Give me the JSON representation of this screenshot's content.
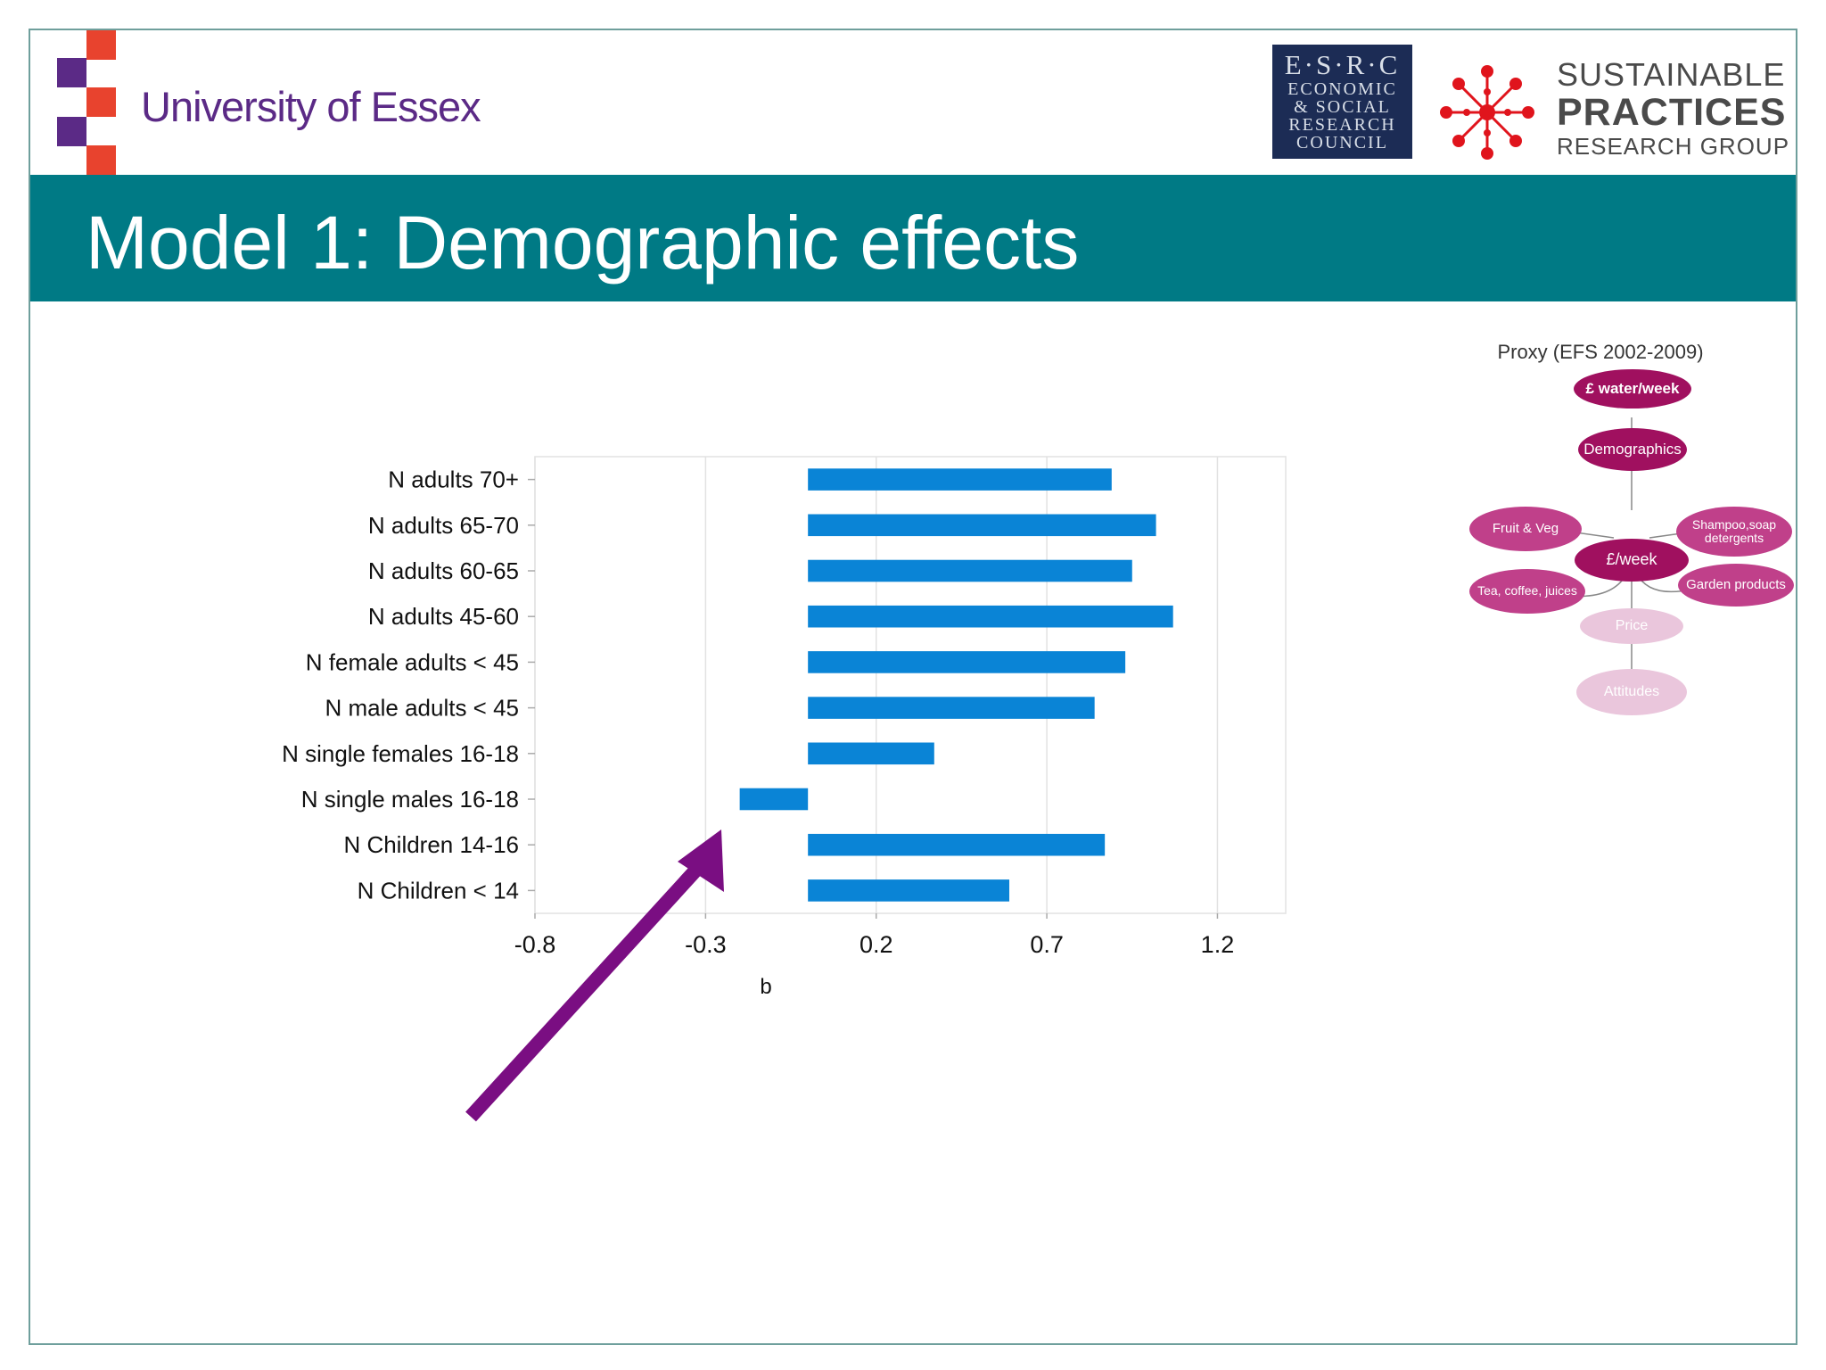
{
  "header": {
    "university": "University of Essex",
    "esrc": {
      "line1": "E·S·R·C",
      "line2": "ECONOMIC",
      "line3": "& SOCIAL",
      "line4": "RESEARCH",
      "line5": "COUNCIL"
    },
    "sprg": {
      "line1": "SUSTAINABLE",
      "line2": "PRACTICES",
      "line3": "RESEARCH GROUP"
    },
    "colors": {
      "essex_purple": "#5b2a86",
      "essex_red": "#e8432e",
      "esrc_navy": "#1c2c55",
      "sprg_red": "#e0141c"
    }
  },
  "slide": {
    "title": "Model 1: Demographic effects",
    "banner_color": "#007a85"
  },
  "chart_data": {
    "type": "bar",
    "orientation": "horizontal",
    "title": "",
    "xlabel": "b",
    "ylabel": "",
    "categories": [
      "N adults 70+",
      "N adults 65-70",
      "N adults 60-65",
      "N adults 45-60",
      "N female adults < 45",
      "N male adults < 45",
      "N single females 16-18",
      "N single males 16-18",
      "N Children 14-16",
      "N Children < 14"
    ],
    "values": [
      0.89,
      1.02,
      0.95,
      1.07,
      0.93,
      0.84,
      0.37,
      -0.2,
      0.87,
      0.59
    ],
    "xlim": [
      -0.8,
      1.4
    ],
    "xticks": [
      "-0.8",
      "-0.3",
      "0.2",
      "0.7",
      "1.2"
    ],
    "xtick_values": [
      -0.8,
      -0.3,
      0.2,
      0.7,
      1.2
    ],
    "grid": true,
    "legend": "none",
    "bar_color": "#0a84d6",
    "annotation": {
      "shape": "arrow",
      "color": "#7a0e82",
      "points_to": "N single males 16-18"
    }
  },
  "proxy_diagram": {
    "title": "Proxy (EFS 2002-2009)",
    "nodes": [
      {
        "id": "water",
        "label": "£ water/week"
      },
      {
        "id": "demographics",
        "label": "Demographics"
      },
      {
        "id": "fruit",
        "label": "Fruit & Veg"
      },
      {
        "id": "shampoo",
        "label": "Shampoo,soap detergents"
      },
      {
        "id": "week",
        "label": "£/week"
      },
      {
        "id": "tea",
        "label": "Tea, coffee, juices"
      },
      {
        "id": "garden",
        "label": "Garden products"
      },
      {
        "id": "price",
        "label": "Price"
      },
      {
        "id": "attitudes",
        "label": "Attitudes"
      }
    ],
    "colors": {
      "dark": "#a0105f",
      "mid": "#c0408a",
      "faded": "#eac6dc"
    }
  }
}
